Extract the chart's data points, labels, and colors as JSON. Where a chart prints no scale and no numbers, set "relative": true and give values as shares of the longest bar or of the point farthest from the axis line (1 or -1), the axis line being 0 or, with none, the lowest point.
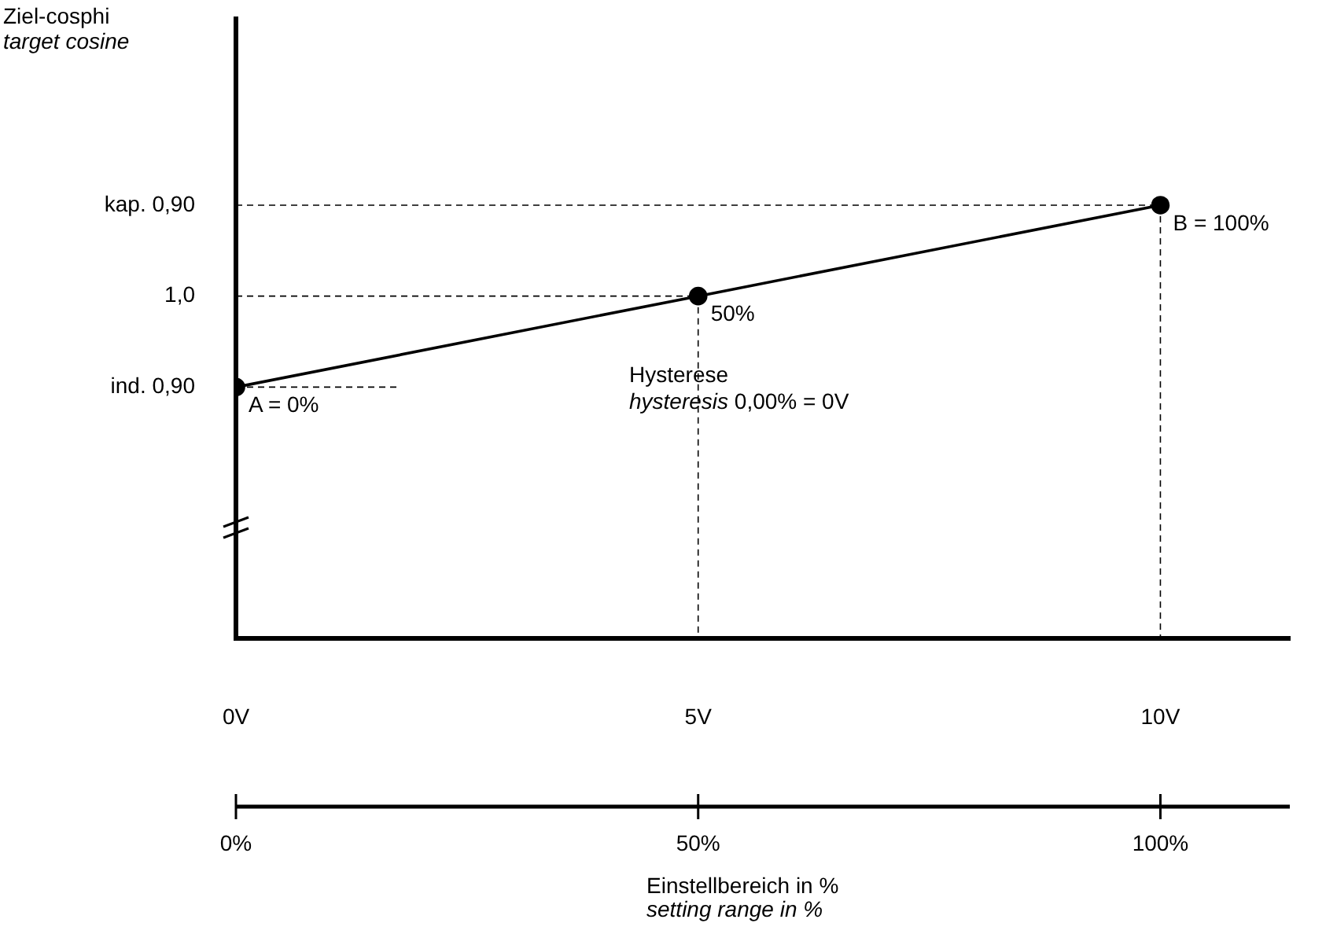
{
  "chart_data": {
    "type": "line",
    "x2label": "Einstellbereich in %\nsetting range in %",
    "x": [
      0,
      5,
      10
    ],
    "values": [
      0.58,
      0.79,
      1
    ],
    "relative": true,
    "color": "#000000",
    "marker": "circle",
    "line_style": "solid",
    "grid": "x",
    "legend": false,
    "xlim": [
      0,
      11.4
    ],
    "xticks": [
      {
        "value": 0,
        "label": "0V"
      },
      {
        "value": 5,
        "label": "5V"
      },
      {
        "value": 10,
        "label": "10V"
      }
    ],
    "x2lim": [
      0,
      114
    ],
    "x2ticks": [
      {
        "value": 0,
        "label": "0%"
      },
      {
        "value": 50,
        "label": "50%"
      },
      {
        "value": 100,
        "label": "100%"
      }
    ],
    "annotations": [
      {
        "text": "A = 0%",
        "x": 0,
        "y": 0.58
      },
      {
        "text": "50%",
        "x": 5,
        "y": 0.79
      },
      {
        "text": "B = 100%",
        "x": 10,
        "y": 1
      },
      "ind. 0,90",
      "1,0",
      "kap. 0,90",
      "Hysterese\nhysteresis 0,00% = 0V",
      "Ziel-cosphi\ntarget cosine"
    ]
  }
}
